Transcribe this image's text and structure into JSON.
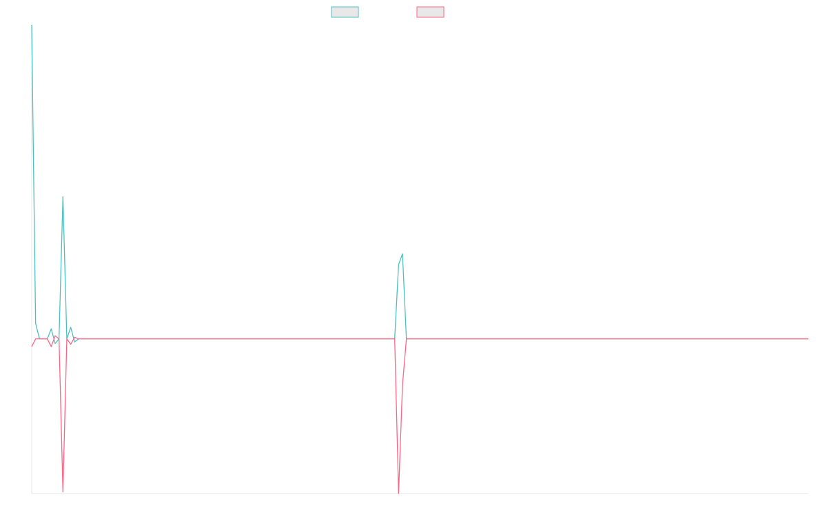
{
  "chart_data": {
    "type": "line",
    "title": "",
    "xlabel": "",
    "ylabel": "",
    "grid": false,
    "legend": "top-center",
    "x_count": 200,
    "ylim": [
      -1,
      2.03
    ],
    "series": [
      {
        "color": "#4bc0c0",
        "points": [
          [
            0,
            2.03
          ],
          [
            1,
            0.1
          ],
          [
            2,
            0
          ],
          [
            3,
            0
          ],
          [
            4,
            0
          ],
          [
            5,
            0.065
          ],
          [
            6,
            -0.03
          ],
          [
            7,
            0
          ],
          [
            8,
            0.92
          ],
          [
            9,
            0
          ],
          [
            10,
            0.075
          ],
          [
            11,
            -0.02
          ],
          [
            12,
            0
          ],
          [
            93,
            0
          ],
          [
            94,
            0.48
          ],
          [
            95,
            0.55
          ],
          [
            96,
            0
          ],
          [
            199,
            0
          ]
        ]
      },
      {
        "color": "#ff6384",
        "points": [
          [
            0,
            -0.05
          ],
          [
            1,
            0
          ],
          [
            2,
            0
          ],
          [
            3,
            0
          ],
          [
            4,
            0
          ],
          [
            5,
            -0.05
          ],
          [
            6,
            0.02
          ],
          [
            7,
            0
          ],
          [
            8,
            -0.99
          ],
          [
            9,
            0
          ],
          [
            10,
            -0.035
          ],
          [
            11,
            0.01
          ],
          [
            12,
            0
          ],
          [
            93,
            0
          ],
          [
            94,
            -1
          ],
          [
            95,
            -0.3
          ],
          [
            96,
            0
          ],
          [
            199,
            0
          ]
        ]
      }
    ]
  }
}
